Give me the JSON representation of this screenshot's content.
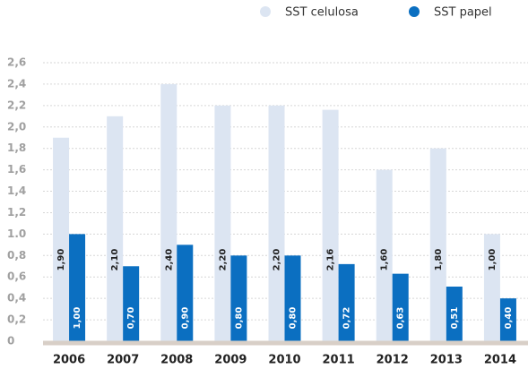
{
  "chart_data": {
    "type": "bar",
    "categories": [
      "2006",
      "2007",
      "2008",
      "2009",
      "2010",
      "2011",
      "2012",
      "2013",
      "2014"
    ],
    "series": [
      {
        "name": "SST celulosa",
        "color": "#dce5f2",
        "values": [
          1.9,
          2.1,
          2.4,
          2.2,
          2.2,
          2.16,
          1.6,
          1.8,
          1.0
        ],
        "value_labels": [
          "1,90",
          "2,10",
          "2,40",
          "2,20",
          "2,20",
          "2,16",
          "1,60",
          "1,80",
          "1,00"
        ]
      },
      {
        "name": "SST papel",
        "color": "#0b6fc1",
        "values": [
          1.0,
          0.7,
          0.9,
          0.8,
          0.8,
          0.72,
          0.63,
          0.51,
          0.4
        ],
        "value_labels": [
          "1,00",
          "0,70",
          "0,90",
          "0,80",
          "0,80",
          "0,72",
          "0,63",
          "0,51",
          "0,40"
        ]
      }
    ],
    "ylim": [
      0,
      2.6
    ],
    "yticks": [
      0,
      {
        "value": 0.2,
        "label": "0,2"
      },
      {
        "value": 0.4,
        "label": "0,4"
      },
      {
        "value": 0.6,
        "label": "0,6"
      },
      {
        "value": 0.8,
        "label": "0,8"
      },
      {
        "value": 1.0,
        "label": "1.0"
      },
      {
        "value": 1.2,
        "label": "1,2"
      },
      {
        "value": 1.4,
        "label": "1,4"
      },
      {
        "value": 1.6,
        "label": "1,6"
      },
      {
        "value": 1.8,
        "label": "1,8"
      },
      {
        "value": 2.0,
        "label": "2,0"
      },
      {
        "value": 2.2,
        "label": "2,2"
      },
      {
        "value": 2.4,
        "label": "2,4"
      },
      {
        "value": 2.6,
        "label": "2,6"
      }
    ],
    "grid": true,
    "legend": "top-right"
  }
}
